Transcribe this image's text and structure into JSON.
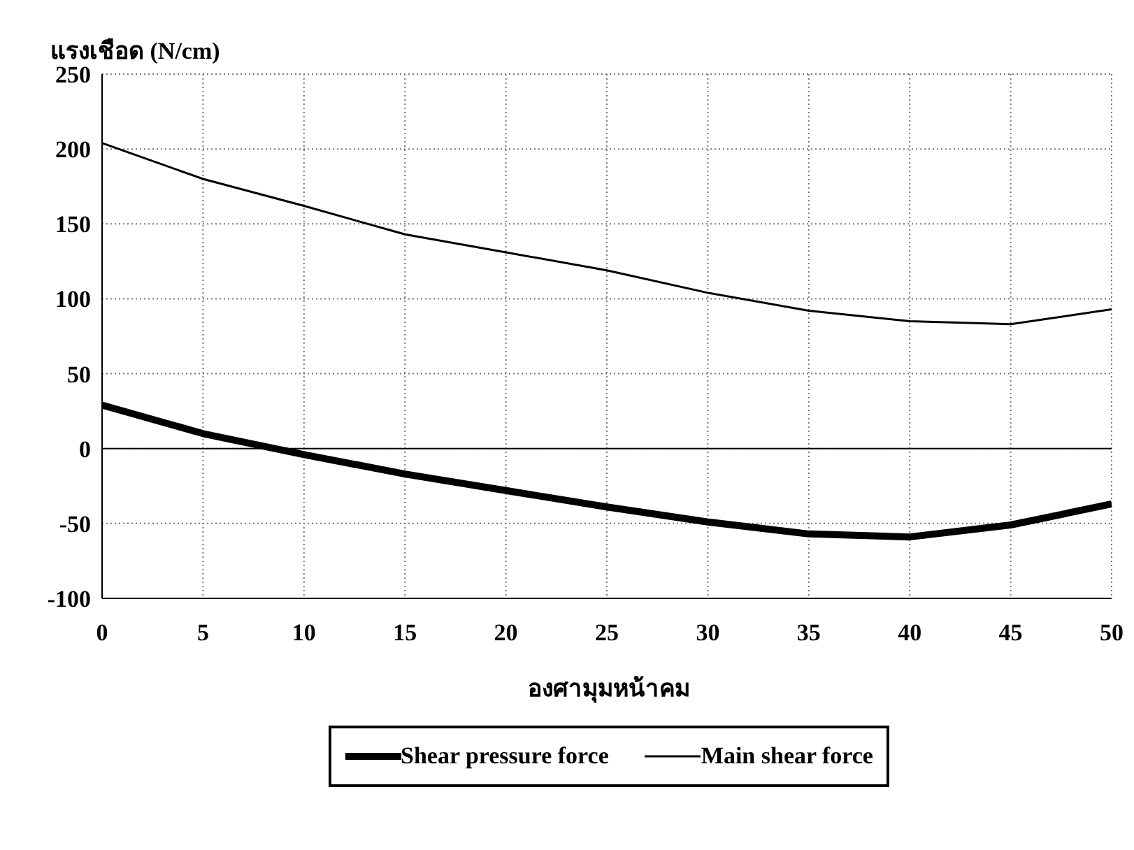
{
  "chart_data": {
    "type": "line",
    "ylabel": "แรงเชือด (N/cm)",
    "xlabel": "องศามุมหน้าคม",
    "x": [
      0,
      5,
      10,
      15,
      20,
      25,
      30,
      35,
      40,
      45,
      50
    ],
    "series": [
      {
        "name": "Shear pressure force",
        "color": "#000000",
        "values": [
          29,
          10,
          -4,
          -17,
          -28,
          -39,
          -49,
          -57,
          -59,
          -51,
          -37
        ]
      },
      {
        "name": "Main shear force",
        "color": "#000000",
        "values": [
          204,
          180,
          162,
          143,
          131,
          119,
          104,
          92,
          85,
          83,
          93
        ]
      }
    ],
    "xlim": [
      0,
      50
    ],
    "xticks": [
      0,
      5,
      10,
      15,
      20,
      25,
      30,
      35,
      40,
      45,
      50
    ],
    "ylim": [
      -100,
      250
    ],
    "yticks": [
      -100,
      -50,
      0,
      50,
      100,
      150,
      200,
      250
    ],
    "ref_lines": [
      {
        "axis": "y",
        "value": 0,
        "color": "#000000"
      }
    ],
    "grid": true,
    "legend": "bottom",
    "marker": "none",
    "line_style": "solid"
  }
}
